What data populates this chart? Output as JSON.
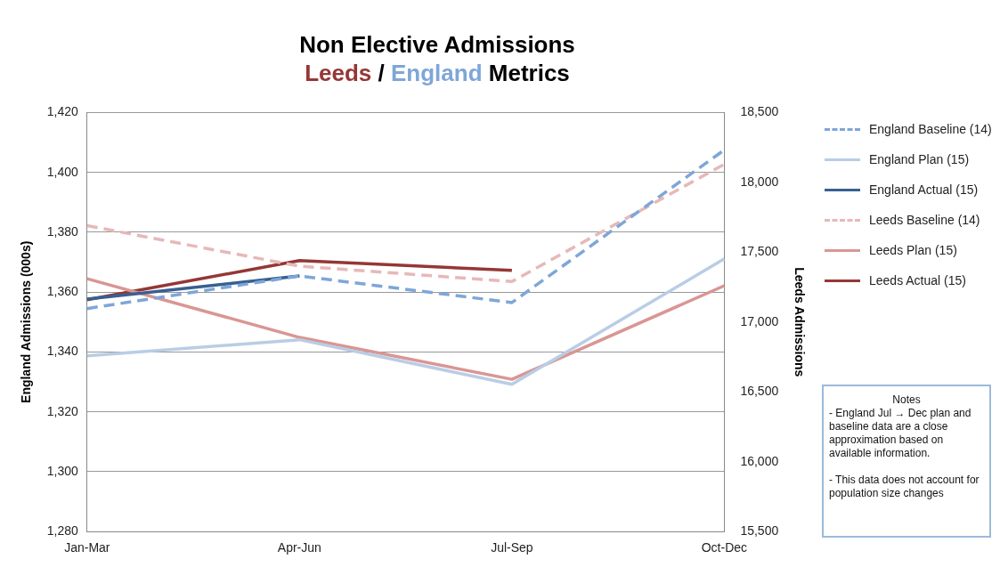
{
  "chart_data": {
    "type": "line",
    "title": "Non Elective Admissions",
    "subtitle": "Leeds / England Metrics",
    "xlabel": null,
    "ylabel": "England Admissions (000s)",
    "y2label": "Leeds Admissions",
    "categories": [
      "Jan-Mar",
      "Apr-Jun",
      "Jul-Sep",
      "Oct-Dec"
    ],
    "series": [
      {
        "name": "England Baseline (14)",
        "color": "#7ea6d8",
        "line_style": "dashed",
        "values": [
          1354.5,
          1365.4,
          1356.5,
          1407.5
        ]
      },
      {
        "name": "England Plan (15)",
        "color": "#b9cde5",
        "line_style": "solid",
        "values": [
          1338.7,
          1344.1,
          1329.2,
          1371.1
        ]
      },
      {
        "name": "England Actual (15)",
        "color": "#376092",
        "line_style": "solid",
        "values": [
          1357.7,
          1365.4,
          null,
          null
        ]
      },
      {
        "name": "Leeds Baseline (14)",
        "color": "#e6b9b8",
        "line_style": "dashed",
        "axis": "y2",
        "values": [
          17690,
          17400,
          17290,
          18130
        ]
      },
      {
        "name": "Leeds Plan (15)",
        "color": "#d99694",
        "line_style": "solid",
        "axis": "y2",
        "values": [
          17310,
          16890,
          16590,
          17260
        ]
      },
      {
        "name": "Leeds Actual (15)",
        "color": "#953735",
        "line_style": "solid",
        "axis": "y2",
        "values": [
          17160,
          17440,
          17370,
          null
        ]
      }
    ],
    "ylim": [
      1280,
      1420
    ],
    "yticks": [
      {
        "value": 1280,
        "label": "1,280"
      },
      {
        "value": 1300,
        "label": "1,300"
      },
      {
        "value": 1320,
        "label": "1,320"
      },
      {
        "value": 1340,
        "label": "1,340"
      },
      {
        "value": 1360,
        "label": "1,360"
      },
      {
        "value": 1380,
        "label": "1,380"
      },
      {
        "value": 1400,
        "label": "1,400"
      },
      {
        "value": 1420,
        "label": "1,420"
      }
    ],
    "y2lim": [
      15500,
      18500
    ],
    "y2ticks": [
      {
        "value": 15500,
        "label": "15,500"
      },
      {
        "value": 16000,
        "label": "16,000"
      },
      {
        "value": 16500,
        "label": "16,500"
      },
      {
        "value": 17000,
        "label": "17,000"
      },
      {
        "value": 17500,
        "label": "17,500"
      },
      {
        "value": 18000,
        "label": "18,000"
      },
      {
        "value": 18500,
        "label": "18,500"
      }
    ],
    "grid": "y",
    "legend": "right",
    "marker": "none",
    "annotations": [
      "Notes",
      "- England Jul → Dec  plan and baseline data are  a close approximation based on available information.",
      "- This data does not account for population size changes"
    ]
  }
}
